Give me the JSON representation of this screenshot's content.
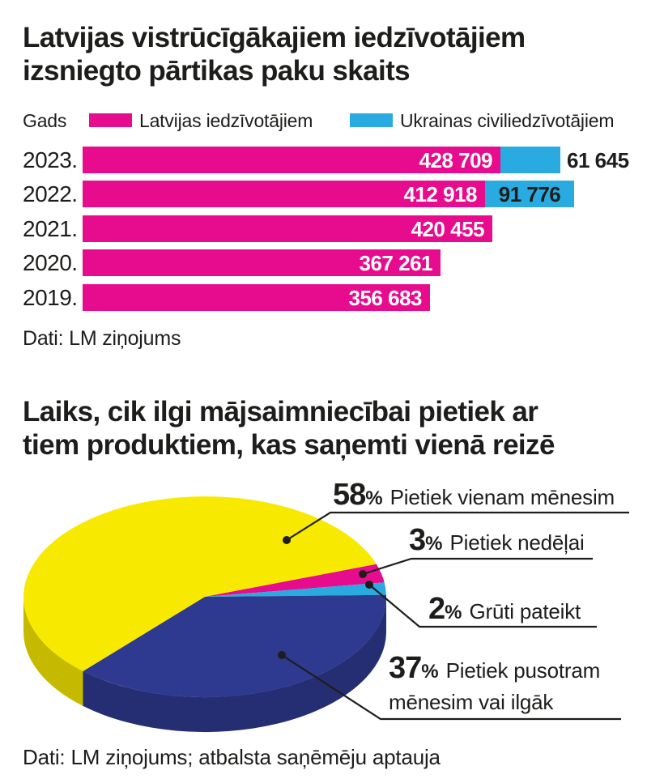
{
  "section1": {
    "title_line1": "Latvijas vistrūcīgākajiem iedzīvotājiem",
    "title_line2": "izsniegto pārtikas paku skaits",
    "legend": {
      "axis_label": "Gads",
      "series": [
        {
          "label": "Latvijas iedzīvotājiem",
          "color": "#e60c8d"
        },
        {
          "label": "Ukrainas civiliedzīvotājiem",
          "color": "#29abe2"
        }
      ]
    },
    "source": "Dati: LM ziņojums"
  },
  "section2": {
    "title_line1": "Laiks, cik ilgi mājsaimniecībai pietiek ar",
    "title_line2": "tiem produktiem, kas saņemti vienā reizē",
    "labels": [
      {
        "value": "58",
        "unit": "%",
        "line1": "Pietiek vienam mēnesim",
        "line2": ""
      },
      {
        "value": "3",
        "unit": "%",
        "line1": "Pietiek nedēļai",
        "line2": ""
      },
      {
        "value": "2",
        "unit": "%",
        "line1": "Grūti pateikt",
        "line2": ""
      },
      {
        "value": "37",
        "unit": "%",
        "line1": "Pietiek pusotram",
        "line2": "mēnesim vai ilgāk"
      }
    ],
    "source": "Dati: LM ziņojums; atbalsta saņēmēju aptauja"
  },
  "chart_data": [
    {
      "type": "bar",
      "orientation": "horizontal",
      "stacked": true,
      "title": "Latvijas vistrūcīgākajiem iedzīvotājiem izsniegto pārtikas paku skaits",
      "categories": [
        "2023.",
        "2022.",
        "2021.",
        "2020.",
        "2019."
      ],
      "series": [
        {
          "name": "Latvijas iedzīvotājiem",
          "color": "#e60c8d",
          "values": [
            428709,
            412918,
            420455,
            367261,
            356683
          ],
          "value_labels": [
            "428 709",
            "412 918",
            "420 455",
            "367 261",
            "356 683"
          ]
        },
        {
          "name": "Ukrainas civiliedzīvotājiem",
          "color": "#29abe2",
          "values": [
            61645,
            91776,
            null,
            null,
            null
          ],
          "value_labels": [
            "61 645",
            "91 776",
            "",
            "",
            ""
          ],
          "label_inside": [
            false,
            true,
            false,
            false,
            false
          ]
        }
      ],
      "value_label_color_inside_pink": "#ffffff",
      "value_label_color_blue": "#1d1d1b",
      "source": "Dati: LM ziņojums"
    },
    {
      "type": "pie",
      "style": "3d",
      "title": "Laiks, cik ilgi mājsaimniecībai pietiek ar tiem produktiem, kas saņemti vienā reizē",
      "slices": [
        {
          "label": "Pietiek vienam mēnesim",
          "pct": 58,
          "color": "#f8e900"
        },
        {
          "label": "Pietiek nedēļai",
          "pct": 3,
          "color": "#e60c8d"
        },
        {
          "label": "Grūti pateikt",
          "pct": 2,
          "color": "#29abe2"
        },
        {
          "label": "Pietiek pusotram mēnesim vai ilgāk",
          "pct": 37,
          "color": "#2e3a90"
        }
      ],
      "draw_order": [
        1,
        2,
        3,
        0
      ],
      "start_angle_deg": -19,
      "legend_position": "callouts-right",
      "source": "Dati: LM ziņojums; atbalsta saņēmēju aptauja"
    }
  ]
}
